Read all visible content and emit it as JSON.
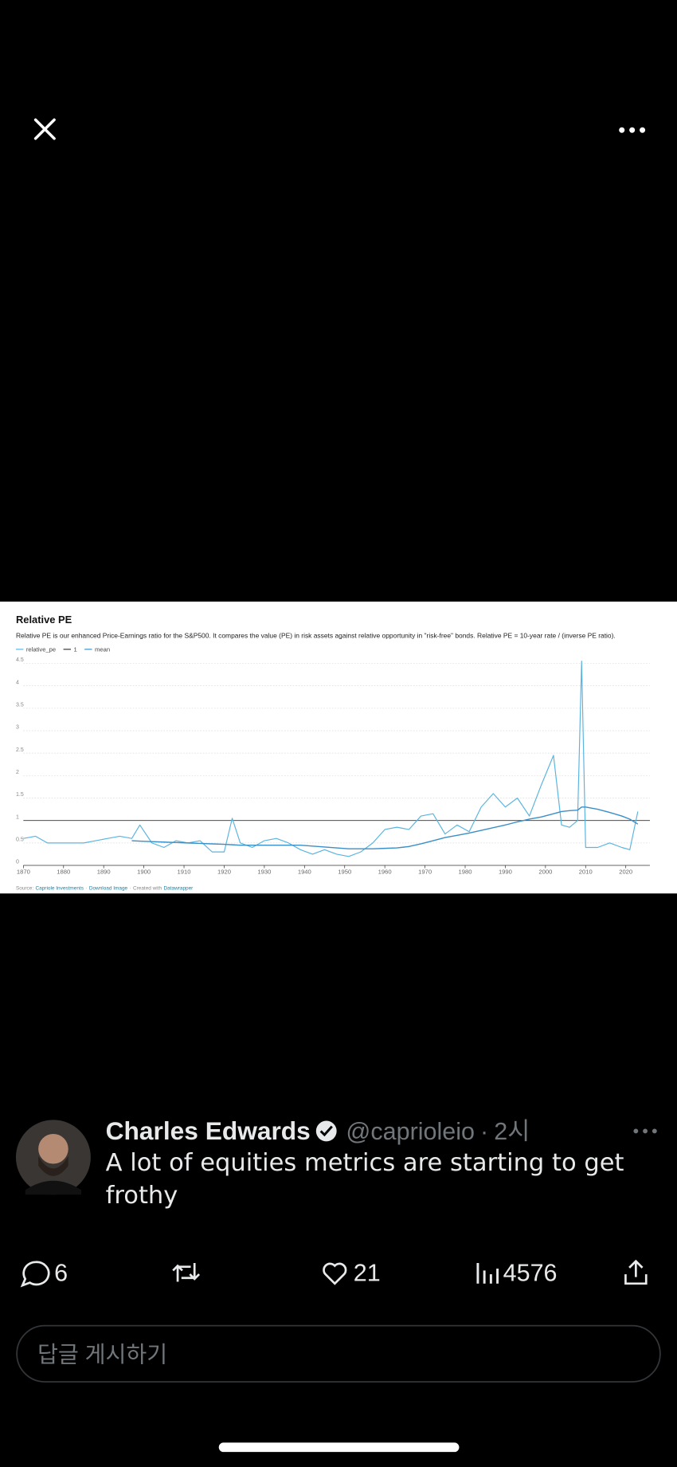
{
  "tweet": {
    "name": "Charles Edwards",
    "handle": "@caprioleio",
    "separator": "·",
    "time": "2시",
    "text": "A lot of equities metrics are starting to get frothy"
  },
  "actions": {
    "replies": 6,
    "likes": 21,
    "views": 4576
  },
  "reply": {
    "placeholder": "답글 게시하기"
  },
  "chart_data": {
    "type": "line",
    "title": "Relative PE",
    "subtitle": "Relative PE is our enhanced Price-Earnings ratio for the S&P500. It compares the value (PE) in risk assets against relative opportunity in \"risk-free\" bonds. Relative PE = 10-year rate / (inverse PE ratio).",
    "source_parts": [
      "Source:",
      "Capriole Investments",
      "·",
      "Download Image",
      "·",
      "Created with",
      "Datawrapper"
    ],
    "x": [
      1870,
      1873,
      1876,
      1879,
      1882,
      1885,
      1888,
      1891,
      1894,
      1897,
      1899,
      1902,
      1905,
      1908,
      1911,
      1914,
      1917,
      1920,
      1922,
      1924,
      1927,
      1930,
      1933,
      1936,
      1939,
      1942,
      1945,
      1948,
      1951,
      1954,
      1957,
      1960,
      1963,
      1966,
      1969,
      1972,
      1975,
      1978,
      1981,
      1984,
      1987,
      1990,
      1993,
      1996,
      1999,
      2002,
      2004,
      2006,
      2008,
      2009,
      2010,
      2013,
      2016,
      2019,
      2021,
      2023
    ],
    "series": [
      {
        "name": "relative_pe",
        "color": "#5ab4e0",
        "values": [
          0.6,
          0.65,
          0.5,
          0.5,
          0.5,
          0.5,
          0.55,
          0.6,
          0.65,
          0.6,
          0.9,
          0.5,
          0.4,
          0.55,
          0.5,
          0.55,
          0.3,
          0.3,
          1.05,
          0.5,
          0.4,
          0.55,
          0.6,
          0.5,
          0.35,
          0.25,
          0.35,
          0.25,
          0.2,
          0.3,
          0.5,
          0.8,
          0.85,
          0.8,
          1.1,
          1.15,
          0.7,
          0.9,
          0.75,
          1.3,
          1.6,
          1.3,
          1.5,
          1.1,
          1.8,
          2.45,
          0.9,
          0.85,
          1.0,
          4.55,
          0.4,
          0.4,
          0.5,
          0.4,
          0.35,
          1.2
        ]
      },
      {
        "name": "mean",
        "color": "#3a8fc7",
        "values": [
          null,
          null,
          null,
          null,
          null,
          null,
          null,
          null,
          null,
          0.55,
          0.54,
          0.53,
          0.52,
          0.51,
          0.5,
          0.49,
          0.48,
          0.47,
          0.46,
          0.45,
          0.45,
          0.45,
          0.45,
          0.45,
          0.45,
          0.43,
          0.41,
          0.39,
          0.37,
          0.37,
          0.37,
          0.38,
          0.39,
          0.42,
          0.48,
          0.55,
          0.62,
          0.67,
          0.72,
          0.78,
          0.84,
          0.9,
          0.97,
          1.03,
          1.08,
          1.15,
          1.2,
          1.22,
          1.23,
          1.3,
          1.3,
          1.25,
          1.18,
          1.1,
          1.03,
          0.92
        ]
      }
    ],
    "reference_lines": [
      {
        "name": "1",
        "value": 1,
        "color": "#333333"
      }
    ],
    "xlim": [
      1870,
      2026
    ],
    "xticks": [
      1870,
      1880,
      1890,
      1900,
      1910,
      1920,
      1930,
      1940,
      1950,
      1960,
      1970,
      1980,
      1990,
      2000,
      2010,
      2020
    ],
    "ylim": [
      0,
      4.6
    ],
    "yticks": [
      0,
      0.5,
      1,
      1.5,
      2,
      2.5,
      3,
      3.5,
      4,
      4.5
    ],
    "grid": true
  }
}
